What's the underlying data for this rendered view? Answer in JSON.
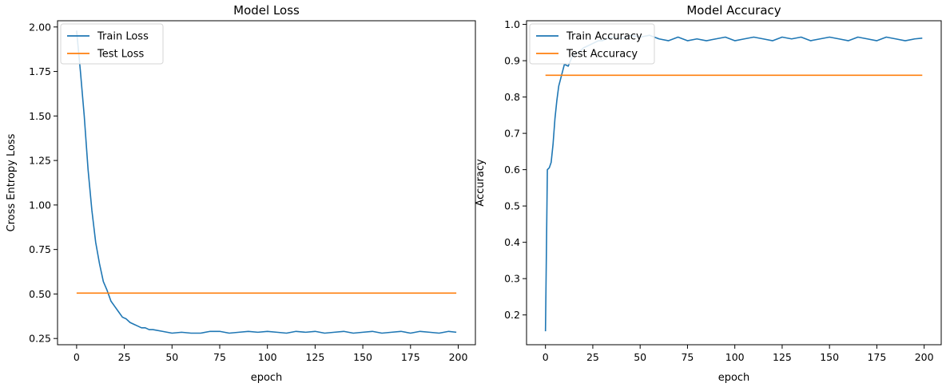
{
  "chart_data": [
    {
      "type": "line",
      "title": "Model Loss",
      "xlabel": "epoch",
      "ylabel": "Cross Entropy Loss",
      "xlim": [
        -10,
        209
      ],
      "ylim": [
        0.215,
        2.035
      ],
      "xticks": [
        0,
        25,
        50,
        75,
        100,
        125,
        150,
        175,
        200
      ],
      "yticks": [
        0.25,
        0.5,
        0.75,
        1.0,
        1.25,
        1.5,
        1.75,
        2.0
      ],
      "ytick_labels": [
        "0.25",
        "0.50",
        "0.75",
        "1.00",
        "1.25",
        "1.50",
        "1.75",
        "2.00"
      ],
      "legend_position": "upper left",
      "grid": false,
      "series": [
        {
          "name": "Train Loss",
          "color": "#1f77b4",
          "x": [
            0,
            2,
            4,
            6,
            8,
            10,
            12,
            14,
            16,
            18,
            20,
            22,
            24,
            26,
            28,
            30,
            32,
            34,
            36,
            38,
            40,
            45,
            50,
            55,
            60,
            65,
            70,
            75,
            80,
            85,
            90,
            95,
            100,
            105,
            110,
            115,
            120,
            125,
            130,
            135,
            140,
            145,
            150,
            155,
            160,
            165,
            170,
            175,
            180,
            185,
            190,
            195,
            199
          ],
          "y": [
            1.98,
            1.75,
            1.5,
            1.2,
            0.97,
            0.79,
            0.67,
            0.57,
            0.52,
            0.46,
            0.43,
            0.4,
            0.37,
            0.36,
            0.34,
            0.33,
            0.32,
            0.31,
            0.31,
            0.3,
            0.3,
            0.29,
            0.28,
            0.285,
            0.28,
            0.28,
            0.29,
            0.29,
            0.28,
            0.285,
            0.29,
            0.285,
            0.29,
            0.285,
            0.28,
            0.29,
            0.285,
            0.29,
            0.28,
            0.285,
            0.29,
            0.28,
            0.285,
            0.29,
            0.28,
            0.285,
            0.29,
            0.28,
            0.29,
            0.285,
            0.28,
            0.29,
            0.285
          ]
        },
        {
          "name": "Test Loss",
          "color": "#ff7f0e",
          "x": [
            0,
            199
          ],
          "y": [
            0.505,
            0.505
          ]
        }
      ]
    },
    {
      "type": "line",
      "title": "Model Accuracy",
      "xlabel": "epoch",
      "ylabel": "Accuracy",
      "xlim": [
        -10,
        209
      ],
      "ylim": [
        0.118,
        1.01
      ],
      "xticks": [
        0,
        25,
        50,
        75,
        100,
        125,
        150,
        175,
        200
      ],
      "yticks": [
        0.2,
        0.3,
        0.4,
        0.5,
        0.6,
        0.7,
        0.8,
        0.9,
        1.0
      ],
      "ytick_labels": [
        "0.2",
        "0.3",
        "0.4",
        "0.5",
        "0.6",
        "0.7",
        "0.8",
        "0.9",
        "1.0"
      ],
      "legend_position": "upper left",
      "grid": false,
      "series": [
        {
          "name": "Train Accuracy",
          "color": "#1f77b4",
          "x": [
            0,
            1,
            2,
            3,
            4,
            5,
            6,
            7,
            8,
            9,
            10,
            12,
            14,
            16,
            18,
            20,
            22,
            24,
            26,
            28,
            30,
            32,
            35,
            40,
            45,
            50,
            55,
            60,
            65,
            70,
            75,
            80,
            85,
            90,
            95,
            100,
            105,
            110,
            115,
            120,
            125,
            130,
            135,
            140,
            145,
            150,
            155,
            160,
            165,
            170,
            175,
            180,
            185,
            190,
            195,
            199
          ],
          "y": [
            0.155,
            0.6,
            0.605,
            0.62,
            0.67,
            0.74,
            0.79,
            0.83,
            0.85,
            0.87,
            0.89,
            0.885,
            0.91,
            0.92,
            0.925,
            0.935,
            0.94,
            0.945,
            0.95,
            0.955,
            0.955,
            0.96,
            0.965,
            0.96,
            0.97,
            0.965,
            0.97,
            0.96,
            0.955,
            0.965,
            0.955,
            0.96,
            0.955,
            0.96,
            0.965,
            0.955,
            0.96,
            0.965,
            0.96,
            0.955,
            0.965,
            0.96,
            0.965,
            0.955,
            0.96,
            0.965,
            0.96,
            0.955,
            0.965,
            0.96,
            0.955,
            0.965,
            0.96,
            0.955,
            0.96,
            0.962
          ]
        },
        {
          "name": "Test Accuracy",
          "color": "#ff7f0e",
          "x": [
            0,
            199
          ],
          "y": [
            0.86,
            0.86
          ]
        }
      ]
    }
  ]
}
